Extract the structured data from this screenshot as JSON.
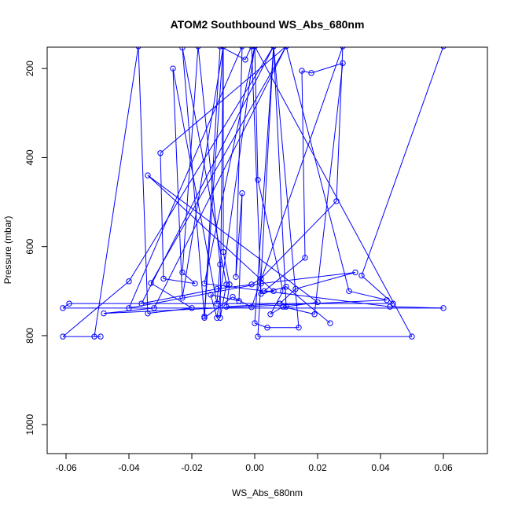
{
  "chart_data": {
    "type": "line",
    "title": "ATOM2 Southbound WS_Abs_680nm",
    "xlabel": "WS_Abs_680nm",
    "ylabel": "Pressure (mbar)",
    "xlim": [
      -0.066,
      0.074
    ],
    "ylim": [
      1065,
      152
    ],
    "y_reversed": true,
    "x_ticks": [
      "-0.06",
      "-0.04",
      "-0.02",
      "0.00",
      "0.02",
      "0.04",
      "0.06"
    ],
    "x_tick_values": [
      -0.06,
      -0.04,
      -0.02,
      0.0,
      0.02,
      0.04,
      0.06
    ],
    "y_ticks": [
      "200",
      "400",
      "600",
      "800",
      "1000"
    ],
    "y_tick_values": [
      200,
      400,
      600,
      800,
      1000
    ],
    "grid": false,
    "legend": "none",
    "colors": {
      "series": "#0000ff",
      "axis": "#000000",
      "background": "#ffffff"
    },
    "series": [
      {
        "marker": "open-circle",
        "points": [
          [
            0.06,
            150
          ],
          [
            0.034,
            665
          ],
          [
            0.044,
            728
          ],
          [
            -0.059,
            728
          ],
          [
            -0.061,
            738
          ],
          [
            0.06,
            738
          ],
          [
            0.043,
            735
          ],
          [
            -0.016,
            683
          ],
          [
            0.0,
            150
          ],
          [
            0.05,
            802
          ],
          [
            0.001,
            802
          ],
          [
            0.006,
            150
          ],
          [
            0.014,
            782
          ],
          [
            0.004,
            782
          ],
          [
            0.0,
            772
          ],
          [
            0.006,
            150
          ],
          [
            -0.04,
            678
          ],
          [
            -0.061,
            802
          ],
          [
            -0.049,
            802
          ],
          [
            -0.051,
            802
          ],
          [
            -0.037,
            150
          ],
          [
            -0.034,
            750
          ],
          [
            -0.02,
            738
          ],
          [
            -0.033,
            682
          ],
          [
            0.01,
            150
          ],
          [
            0.03,
            700
          ],
          [
            0.042,
            720
          ],
          [
            -0.048,
            750
          ],
          [
            -0.032,
            738
          ],
          [
            0.01,
            150
          ],
          [
            -0.03,
            390
          ],
          [
            -0.029,
            672
          ],
          [
            -0.019,
            683
          ],
          [
            -0.023,
            658
          ],
          [
            -0.018,
            150
          ],
          [
            -0.011,
            640
          ],
          [
            -0.012,
            728
          ],
          [
            -0.026,
            200
          ],
          [
            -0.023,
            715
          ],
          [
            -0.01,
            150
          ],
          [
            -0.01,
            612
          ],
          [
            -0.008,
            685
          ],
          [
            -0.009,
            735
          ],
          [
            0.008,
            728
          ],
          [
            0.013,
            695
          ],
          [
            0.032,
            658
          ],
          [
            0.002,
            683
          ],
          [
            -0.04,
            738
          ],
          [
            -0.004,
            150
          ],
          [
            -0.006,
            668
          ],
          [
            -0.004,
            480
          ],
          [
            -0.005,
            722
          ],
          [
            -0.014,
            708
          ],
          [
            -0.012,
            760
          ],
          [
            0.0,
            150
          ],
          [
            0.001,
            450
          ],
          [
            0.009,
            700
          ],
          [
            0.005,
            752
          ],
          [
            0.009,
            735
          ],
          [
            0.019,
            752
          ],
          [
            0.028,
            188
          ],
          [
            0.018,
            210
          ],
          [
            0.015,
            205
          ],
          [
            0.016,
            625
          ],
          [
            0.003,
            700
          ],
          [
            0.006,
            700
          ],
          [
            -0.034,
            440
          ],
          [
            0.02,
            725
          ],
          [
            0.01,
            735
          ],
          [
            0.006,
            150
          ],
          [
            -0.036,
            728
          ],
          [
            -0.012,
            695
          ],
          [
            -0.001,
            685
          ],
          [
            0.002,
            672
          ],
          [
            0.026,
            498
          ],
          [
            0.028,
            150
          ],
          [
            -0.001,
            736
          ],
          [
            -0.007,
            713
          ],
          [
            -0.016,
            760
          ],
          [
            -0.01,
            150
          ],
          [
            -0.011,
            760
          ],
          [
            -0.009,
            685
          ],
          [
            -0.023,
            153
          ],
          [
            -0.016,
            757
          ],
          [
            -0.011,
            150
          ],
          [
            -0.003,
            180
          ],
          [
            -0.001,
            150
          ],
          [
            0.002,
            706
          ],
          [
            0.01,
            690
          ],
          [
            0.024,
            772
          ]
        ]
      }
    ]
  }
}
